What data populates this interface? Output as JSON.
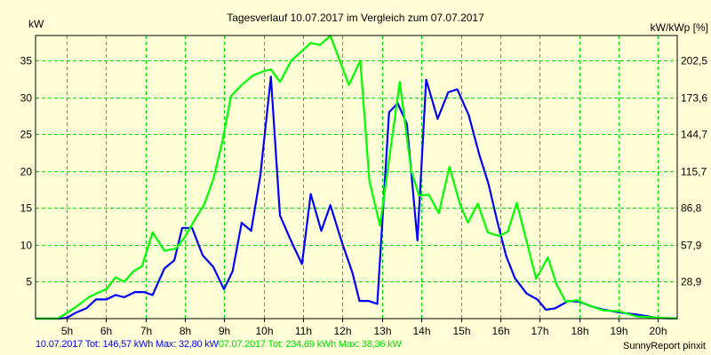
{
  "chart_data": {
    "type": "line",
    "title": "Tagesverlauf 10.07.2017 im Vergleich zum 07.07.2017",
    "ylabel": "kW",
    "ylabel_right": "kW/kWp [%]",
    "xlim": [
      4.21,
      20.49
    ],
    "ylim": [
      0,
      38.4
    ],
    "grid": true,
    "x_ticks": [
      5,
      6,
      7,
      8,
      9,
      10,
      11,
      12,
      13,
      14,
      15,
      16,
      17,
      18,
      19,
      20
    ],
    "x_tick_labels": [
      "5h",
      "6h",
      "7h",
      "8h",
      "9h",
      "10h",
      "11h",
      "12h",
      "13h",
      "14h",
      "15h",
      "16h",
      "17h",
      "18h",
      "19h",
      "20h"
    ],
    "y_ticks": [
      5,
      10,
      15,
      20,
      25,
      30,
      35
    ],
    "y_tick_labels": [
      "5",
      "10",
      "15",
      "20",
      "25",
      "30",
      "35"
    ],
    "y_right_tick_labels": [
      "28,9",
      "57,9",
      "86,8",
      "115,7",
      "144,7",
      "173,6",
      "202,5"
    ],
    "series": [
      {
        "name": "10.07.2017",
        "color": "#0000FF",
        "x": [
          4.21,
          4.77,
          5.0,
          5.23,
          5.5,
          5.74,
          6.01,
          6.24,
          6.46,
          6.73,
          6.96,
          7.18,
          7.48,
          7.73,
          7.93,
          8.18,
          8.45,
          8.72,
          8.99,
          9.21,
          9.44,
          9.68,
          9.91,
          10.18,
          10.41,
          10.68,
          10.97,
          11.19,
          11.46,
          11.69,
          11.98,
          12.25,
          12.43,
          12.66,
          12.88,
          13.18,
          13.4,
          13.63,
          13.9,
          14.12,
          14.41,
          14.68,
          14.91,
          15.2,
          15.47,
          15.7,
          15.92,
          16.15,
          16.37,
          16.67,
          16.94,
          17.16,
          17.39,
          17.73,
          18.0,
          18.29,
          18.63,
          19.08,
          19.53,
          19.98,
          20.49
        ],
        "y": [
          0,
          0,
          0.1,
          0.8,
          1.4,
          2.6,
          2.6,
          3.2,
          2.9,
          3.6,
          3.6,
          3.2,
          6.8,
          7.9,
          12.3,
          12.3,
          8.6,
          7.0,
          4.0,
          6.4,
          13.0,
          11.9,
          19.3,
          32.8,
          14.0,
          10.7,
          7.4,
          16.9,
          11.9,
          15.4,
          10.4,
          6.2,
          2.4,
          2.4,
          2.0,
          28.0,
          29.2,
          26.4,
          10.6,
          32.4,
          27.1,
          30.7,
          31.1,
          27.6,
          22.2,
          18.3,
          13.3,
          8.5,
          5.5,
          3.4,
          2.6,
          1.2,
          1.4,
          2.4,
          2.3,
          1.7,
          1.2,
          0.8,
          0.5,
          0.1,
          0
        ]
      },
      {
        "name": "07.07.2017",
        "color": "#00FF00",
        "x": [
          4.21,
          4.77,
          5.07,
          5.34,
          5.56,
          5.79,
          6.01,
          6.24,
          6.46,
          6.69,
          6.91,
          7.18,
          7.48,
          7.77,
          7.99,
          8.27,
          8.49,
          8.72,
          8.94,
          9.17,
          9.44,
          9.73,
          10.02,
          10.18,
          10.41,
          10.7,
          10.97,
          11.19,
          11.42,
          11.69,
          12.16,
          12.45,
          12.68,
          12.95,
          13.45,
          13.74,
          13.94,
          14.19,
          14.44,
          14.71,
          14.98,
          15.18,
          15.43,
          15.68,
          15.97,
          16.19,
          16.42,
          16.91,
          17.21,
          17.43,
          17.66,
          17.95,
          18.24,
          18.63,
          19.0,
          19.46,
          20.14,
          20.49
        ],
        "y": [
          0,
          0,
          1.0,
          2.0,
          2.9,
          3.5,
          4.0,
          5.6,
          5.0,
          6.4,
          7.1,
          11.7,
          9.2,
          9.5,
          11.0,
          13.6,
          15.5,
          18.9,
          23.8,
          30.2,
          31.7,
          33.0,
          33.6,
          33.8,
          32.1,
          35.0,
          36.3,
          37.4,
          37.1,
          38.36,
          31.7,
          35.0,
          18.7,
          12.6,
          32.1,
          20.1,
          16.7,
          16.8,
          14.3,
          20.6,
          15.5,
          13.0,
          15.6,
          11.7,
          11.2,
          11.8,
          15.7,
          5.4,
          8.3,
          4.6,
          2.3,
          2.5,
          1.8,
          1.1,
          1.0,
          0.3,
          0.1,
          0
        ]
      }
    ]
  },
  "footer": {
    "series1_summary": "10.07.2017 Tot: 146,57 kWh Max: 32,80 kW",
    "series2_summary": "07.07.2017 Tot: 234,69 kWh Max: 38,36 kW",
    "brand": "SunnyReport pinxit"
  }
}
